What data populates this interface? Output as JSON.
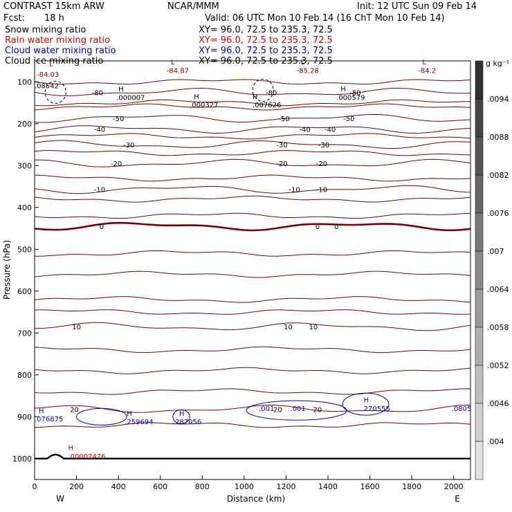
{
  "header": {
    "model": "CONTRAST 15km ARW",
    "org": "NCAR/MMM",
    "init": "Init: 12 UTC Sun 09 Feb 14",
    "fcst_label": "Fcst:",
    "fcst_value": "18 h",
    "valid": "Valid: 06 UTC Mon 10 Feb 14 (16 ChT Mon 10 Feb 14)"
  },
  "fields": [
    {
      "name": "Snow mixing ratio",
      "xy": "XY=  96.0, 72.5 to 235.3, 72.5",
      "color": "#000000"
    },
    {
      "name": "Rain water mixing ratio",
      "xy": "XY=  96.0, 72.5 to 235.3, 72.5",
      "color": "#dd0000"
    },
    {
      "name": "Cloud water mixing ratio",
      "xy": "XY=  96.0, 72.5 to 235.3, 72.5",
      "color": "#0000cc"
    },
    {
      "name": "Cloud ice mixing ratio",
      "xy": "XY=  96.0, 72.5 to 235.3, 72.5",
      "color": "#000000"
    }
  ],
  "chart_data": {
    "type": "contour-cross-section",
    "xlabel": "Distance (km)",
    "ylabel": "Pressure (hPa)",
    "xlim": [
      0,
      2080
    ],
    "ylim": [
      1050,
      50
    ],
    "xticks": [
      0,
      200,
      400,
      600,
      800,
      1000,
      1200,
      1400,
      1600,
      1800,
      2000
    ],
    "yticks": [
      100,
      200,
      300,
      400,
      500,
      600,
      700,
      800,
      900,
      1000
    ],
    "x_end_labels": {
      "left": "W",
      "right": "E"
    },
    "colorbar": {
      "unit": "g kg⁻¹",
      "labels": [
        ".0094",
        ".0088",
        ".0082",
        ".0076",
        ".007",
        ".0064",
        ".0058",
        ".0052",
        ".0046",
        ".004"
      ]
    },
    "temperature_contours": [
      {
        "value": -80,
        "pressure": 125,
        "labels_x": [
          300,
          1130,
          1530
        ]
      },
      {
        "value": -50,
        "pressure": 187,
        "labels_x": [
          400,
          1190,
          1500
        ]
      },
      {
        "value": -40,
        "pressure": 213,
        "labels_x": [
          310,
          1290,
          1410
        ]
      },
      {
        "value": -30,
        "pressure": 250,
        "labels_x": [
          450,
          1180,
          1380
        ]
      },
      {
        "value": -20,
        "pressure": 295,
        "labels_x": [
          390,
          1180,
          1370
        ]
      },
      {
        "value": -10,
        "pressure": 357,
        "labels_x": [
          310,
          1240,
          1370
        ]
      },
      {
        "value": 0,
        "pressure": 445,
        "labels_x": [
          320,
          1350,
          1440
        ]
      },
      {
        "value": 10,
        "pressure": 685,
        "labels_x": [
          200,
          1210,
          1330
        ]
      },
      {
        "value": 20,
        "pressure": 882,
        "labels_x": [
          190,
          1160,
          1350
        ]
      }
    ],
    "annotations": [
      {
        "text": "L",
        "x": 70,
        "p": 63,
        "color": "#880000"
      },
      {
        "text": "-84.03",
        "x": 10,
        "p": 88,
        "color": "#880000"
      },
      {
        "text": "L",
        "x": 650,
        "p": 58,
        "color": "#880000"
      },
      {
        "text": "-84.87",
        "x": 630,
        "p": 79,
        "color": "#880000"
      },
      {
        "text": "L",
        "x": 1270,
        "p": 58,
        "color": "#880000"
      },
      {
        "text": "-85.28",
        "x": 1250,
        "p": 79,
        "color": "#880000"
      },
      {
        "text": "L",
        "x": 1850,
        "p": 58,
        "color": "#880000"
      },
      {
        "text": "-84.2",
        "x": 1830,
        "p": 79,
        "color": "#880000"
      },
      {
        "text": "H",
        "x": 400,
        "p": 123,
        "color": "#000000"
      },
      {
        "text": ".000007",
        "x": 390,
        "p": 143,
        "color": "#000000"
      },
      {
        "text": "H",
        "x": 760,
        "p": 141,
        "color": "#000000"
      },
      {
        "text": ".000327",
        "x": 740,
        "p": 161,
        "color": "#000000"
      },
      {
        "text": "H",
        "x": 1040,
        "p": 141,
        "color": "#000000"
      },
      {
        "text": ".007626",
        "x": 1040,
        "p": 161,
        "color": "#000000"
      },
      {
        "text": "H",
        "x": 1460,
        "p": 123,
        "color": "#000000"
      },
      {
        "text": ".000579",
        "x": 1440,
        "p": 143,
        "color": "#000000"
      },
      {
        "text": ".08542",
        "x": 0,
        "p": 115,
        "color": "#000000"
      },
      {
        "text": "H",
        "x": 20,
        "p": 891,
        "color": "#0000cc"
      },
      {
        "text": ".076875",
        "x": 0,
        "p": 911,
        "color": "#0000cc"
      },
      {
        "text": "H",
        "x": 440,
        "p": 898,
        "color": "#0000cc"
      },
      {
        "text": ".259694",
        "x": 430,
        "p": 918,
        "color": "#0000cc"
      },
      {
        "text": "H",
        "x": 690,
        "p": 898,
        "color": "#0000cc"
      },
      {
        "text": ".287056",
        "x": 660,
        "p": 918,
        "color": "#0000cc"
      },
      {
        "text": ".001",
        "x": 1070,
        "p": 886,
        "color": "#0000cc"
      },
      {
        "text": ".001",
        "x": 1220,
        "p": 886,
        "color": "#0000cc"
      },
      {
        "text": "H",
        "x": 1570,
        "p": 866,
        "color": "#0000cc"
      },
      {
        "text": ".270555",
        "x": 1560,
        "p": 886,
        "color": "#0000cc"
      },
      {
        "text": ".0805",
        "x": 1990,
        "p": 886,
        "color": "#0000cc"
      },
      {
        "text": "H",
        "x": 160,
        "p": 980,
        "color": "#dd0000"
      },
      {
        "text": ".00002476",
        "x": 160,
        "p": 1000,
        "color": "#dd0000"
      }
    ]
  }
}
